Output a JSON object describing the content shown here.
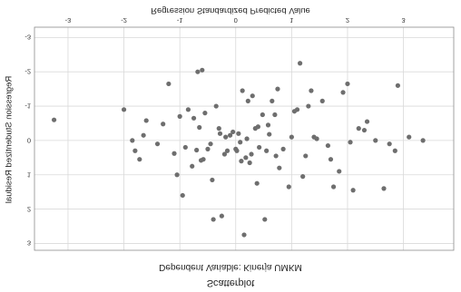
{
  "chart_data": {
    "type": "scatter",
    "title": "Scatterplot",
    "subtitle": "Dependent Variable: Kinerja UMKM",
    "xlabel": "Regression Standardized Predicted Value",
    "ylabel": "Regression Studentized Residual",
    "xlim": [
      -3.6,
      3.9
    ],
    "ylim": [
      -3.3,
      3.2
    ],
    "x_ticks": [
      -3,
      -2,
      -1,
      0,
      1,
      2,
      3
    ],
    "x_tick_labels": [
      "-3",
      "-2",
      "-1",
      "0",
      "1",
      "2",
      "3"
    ],
    "y_ticks": [
      -3,
      -2,
      -1,
      0,
      1,
      2,
      3
    ],
    "y_tick_labels": [
      "-3",
      "-2",
      "-1",
      "0",
      "1",
      "2",
      "3"
    ],
    "grid": true,
    "marker_color": "#6e6e6e",
    "gridline_color": "#d9d9d9",
    "points": [
      {
        "x": -3.25,
        "y": -0.6
      },
      {
        "x": -2.0,
        "y": -0.9
      },
      {
        "x": -1.85,
        "y": 0.0
      },
      {
        "x": -1.8,
        "y": 0.3
      },
      {
        "x": -1.72,
        "y": 0.55
      },
      {
        "x": -1.65,
        "y": -0.15
      },
      {
        "x": -1.6,
        "y": -0.58
      },
      {
        "x": -1.4,
        "y": 0.1
      },
      {
        "x": -1.3,
        "y": -0.48
      },
      {
        "x": -1.2,
        "y": -1.65
      },
      {
        "x": -1.1,
        "y": 0.38
      },
      {
        "x": -1.05,
        "y": 1.0
      },
      {
        "x": -1.0,
        "y": -0.7
      },
      {
        "x": -0.95,
        "y": 1.6
      },
      {
        "x": -0.9,
        "y": 0.2
      },
      {
        "x": -0.85,
        "y": -0.9
      },
      {
        "x": -0.78,
        "y": 0.75
      },
      {
        "x": -0.75,
        "y": -0.65
      },
      {
        "x": -0.7,
        "y": 0.28
      },
      {
        "x": -0.68,
        "y": -2.0
      },
      {
        "x": -0.65,
        "y": -0.38
      },
      {
        "x": -0.62,
        "y": 0.58
      },
      {
        "x": -0.6,
        "y": -2.05
      },
      {
        "x": -0.58,
        "y": 0.55
      },
      {
        "x": -0.55,
        "y": -0.8
      },
      {
        "x": -0.5,
        "y": 0.25
      },
      {
        "x": -0.45,
        "y": 0.1
      },
      {
        "x": -0.42,
        "y": 1.15
      },
      {
        "x": -0.4,
        "y": 2.3
      },
      {
        "x": -0.35,
        "y": -1.0
      },
      {
        "x": -0.3,
        "y": -0.35
      },
      {
        "x": -0.28,
        "y": -0.2
      },
      {
        "x": -0.25,
        "y": 2.2
      },
      {
        "x": -0.2,
        "y": 0.4
      },
      {
        "x": -0.18,
        "y": -0.1
      },
      {
        "x": -0.15,
        "y": 0.3
      },
      {
        "x": -0.1,
        "y": -0.15
      },
      {
        "x": -0.05,
        "y": -0.25
      },
      {
        "x": 0.0,
        "y": 0.25
      },
      {
        "x": 0.02,
        "y": 0.3
      },
      {
        "x": 0.05,
        "y": -0.2
      },
      {
        "x": 0.08,
        "y": 0.05
      },
      {
        "x": 0.1,
        "y": 0.6
      },
      {
        "x": 0.12,
        "y": -1.45
      },
      {
        "x": 0.15,
        "y": 2.75
      },
      {
        "x": 0.18,
        "y": 0.5
      },
      {
        "x": 0.2,
        "y": -0.05
      },
      {
        "x": 0.22,
        "y": -1.15
      },
      {
        "x": 0.25,
        "y": 0.65
      },
      {
        "x": 0.28,
        "y": 0.4
      },
      {
        "x": 0.3,
        "y": -1.3
      },
      {
        "x": 0.35,
        "y": -0.35
      },
      {
        "x": 0.38,
        "y": 1.25
      },
      {
        "x": 0.4,
        "y": -0.4
      },
      {
        "x": 0.42,
        "y": 0.2
      },
      {
        "x": 0.48,
        "y": -0.75
      },
      {
        "x": 0.52,
        "y": 2.3
      },
      {
        "x": 0.55,
        "y": 0.3
      },
      {
        "x": 0.58,
        "y": -0.45
      },
      {
        "x": 0.6,
        "y": -0.18
      },
      {
        "x": 0.65,
        "y": -1.15
      },
      {
        "x": 0.7,
        "y": -0.75
      },
      {
        "x": 0.72,
        "y": 0.45
      },
      {
        "x": 0.75,
        "y": -1.5
      },
      {
        "x": 0.78,
        "y": 0.8
      },
      {
        "x": 0.85,
        "y": 0.25
      },
      {
        "x": 0.95,
        "y": 1.35
      },
      {
        "x": 1.0,
        "y": -0.1
      },
      {
        "x": 1.05,
        "y": -0.85
      },
      {
        "x": 1.1,
        "y": -0.9
      },
      {
        "x": 1.15,
        "y": -2.25
      },
      {
        "x": 1.2,
        "y": 1.05
      },
      {
        "x": 1.25,
        "y": 0.45
      },
      {
        "x": 1.3,
        "y": -1.0
      },
      {
        "x": 1.35,
        "y": -1.45
      },
      {
        "x": 1.4,
        "y": -0.1
      },
      {
        "x": 1.45,
        "y": -0.05
      },
      {
        "x": 1.55,
        "y": -1.15
      },
      {
        "x": 1.65,
        "y": 0.15
      },
      {
        "x": 1.7,
        "y": 0.55
      },
      {
        "x": 1.75,
        "y": 1.35
      },
      {
        "x": 1.85,
        "y": 0.9
      },
      {
        "x": 1.92,
        "y": -1.4
      },
      {
        "x": 2.0,
        "y": -1.65
      },
      {
        "x": 2.05,
        "y": 0.05
      },
      {
        "x": 2.1,
        "y": 1.45
      },
      {
        "x": 2.2,
        "y": -0.35
      },
      {
        "x": 2.3,
        "y": -0.3
      },
      {
        "x": 2.35,
        "y": -0.55
      },
      {
        "x": 2.5,
        "y": 0.0
      },
      {
        "x": 2.65,
        "y": 1.4
      },
      {
        "x": 2.75,
        "y": 0.1
      },
      {
        "x": 2.85,
        "y": 0.3
      },
      {
        "x": 2.9,
        "y": -1.6
      },
      {
        "x": 3.1,
        "y": -0.1
      },
      {
        "x": 3.35,
        "y": 0.0
      }
    ]
  }
}
